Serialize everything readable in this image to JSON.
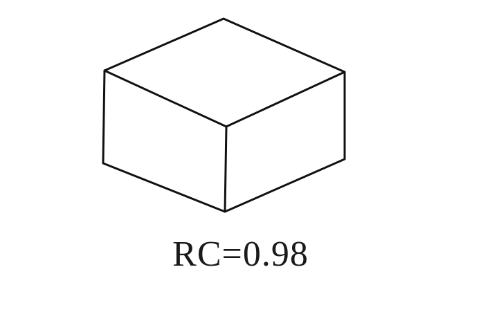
{
  "figure": {
    "caption": "RC=0.98",
    "shape": "isometric-box",
    "stroke_color": "#111111",
    "background_color": "#ffffff"
  }
}
